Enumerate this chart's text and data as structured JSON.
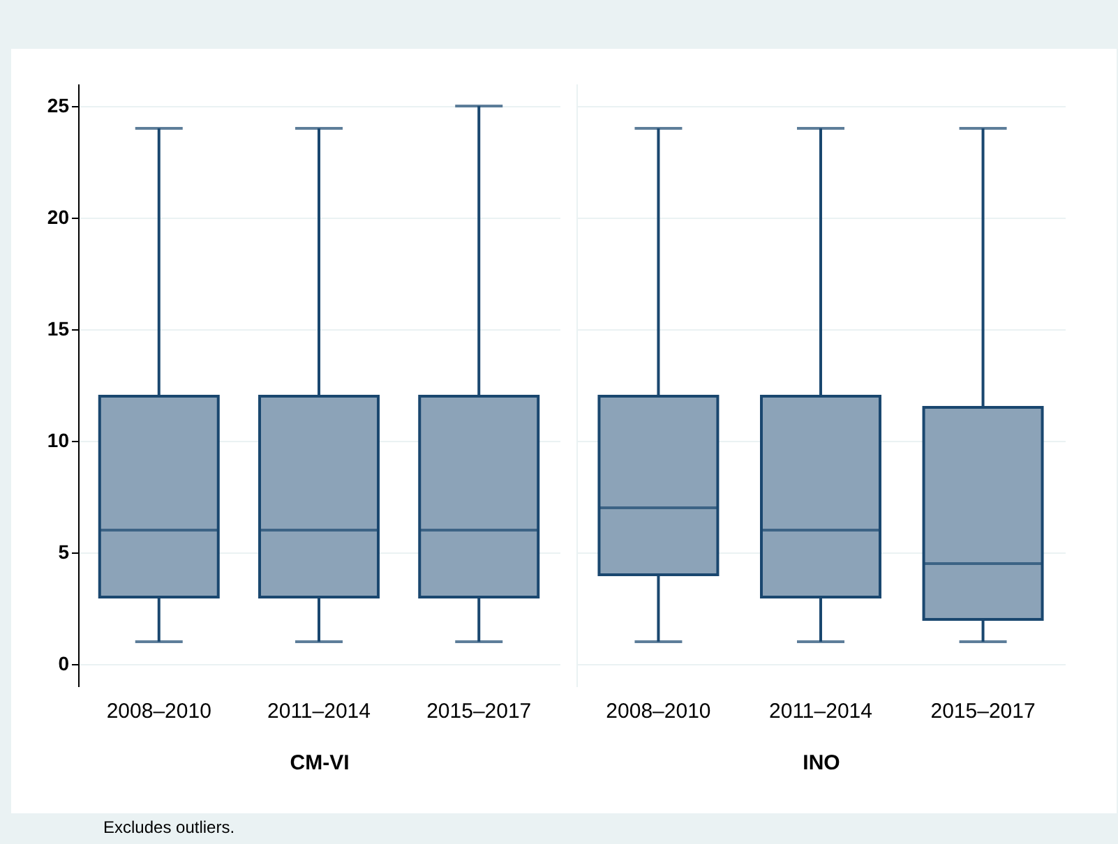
{
  "chart_data": [
    {
      "type": "box",
      "xlabel": "CM-VI",
      "categories": [
        "2008–2010",
        "2011–2014",
        "2015–2017"
      ],
      "ylim": [
        -1,
        26
      ],
      "yticks": [
        0,
        5,
        10,
        15,
        20,
        25
      ],
      "grid": "y",
      "annotations": [
        "Excludes outliers."
      ],
      "series": [
        {
          "color": "#8ca3b8",
          "boxes": [
            {
              "low": 1,
              "q1": 3,
              "median": 6,
              "q3": 12,
              "high": 24
            },
            {
              "low": 1,
              "q1": 3,
              "median": 6,
              "q3": 12,
              "high": 24
            },
            {
              "low": 1,
              "q1": 3,
              "median": 6,
              "q3": 12,
              "high": 25
            }
          ]
        }
      ]
    },
    {
      "type": "box",
      "xlabel": "INO",
      "categories": [
        "2008–2010",
        "2011–2014",
        "2015–2017"
      ],
      "ylim": [
        -1,
        26
      ],
      "yticks": [
        0,
        5,
        10,
        15,
        20,
        25
      ],
      "grid": "y",
      "tick_labels": "x",
      "series": [
        {
          "color": "#8ca3b8",
          "boxes": [
            {
              "low": 1,
              "q1": 4,
              "median": 7,
              "q3": 12,
              "high": 24
            },
            {
              "low": 1,
              "q1": 3,
              "median": 6,
              "q3": 12,
              "high": 24
            },
            {
              "low": 1,
              "q1": 2,
              "median": 4.5,
              "q3": 11.5,
              "high": 24
            }
          ]
        }
      ]
    }
  ]
}
